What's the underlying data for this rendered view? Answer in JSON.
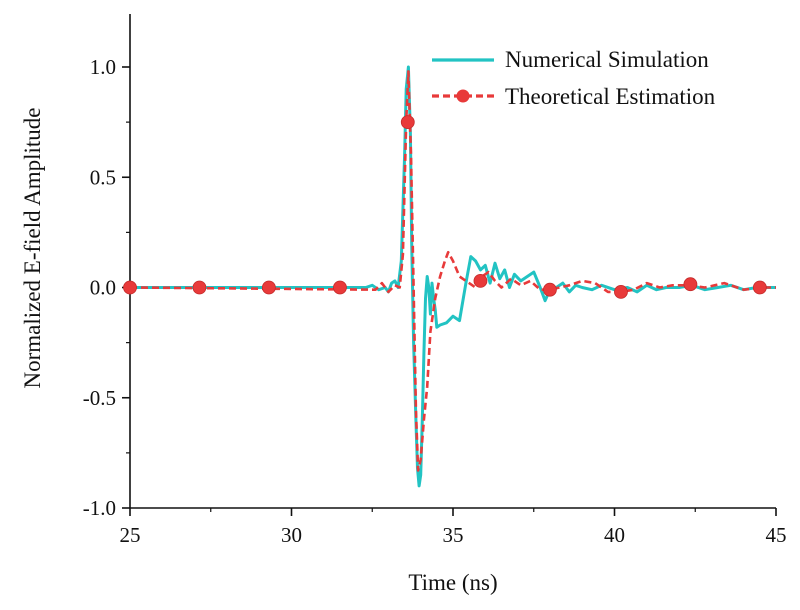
{
  "chart_data": {
    "type": "line",
    "title": "",
    "xlabel": "Time (ns)",
    "ylabel": "Normalized E-field Amplitude",
    "xlim": [
      25,
      45
    ],
    "ylim": [
      -1.0,
      1.25
    ],
    "xticks": [
      25,
      30,
      35,
      40,
      45
    ],
    "xtick_labels": [
      "25",
      "30",
      "35",
      "40",
      "45"
    ],
    "yticks": [
      -1.0,
      -0.5,
      0.0,
      0.5,
      1.0
    ],
    "ytick_labels": [
      "-1.0",
      "-0.5",
      "0.0",
      "0.5",
      "1.0"
    ],
    "grid": false,
    "legend": "top-right",
    "colors": {
      "simulation": "#22c3c3",
      "theory": "#e83a3a"
    },
    "series": [
      {
        "name": "Numerical Simulation",
        "style": "solid",
        "x": [
          25,
          32.3,
          32.5,
          32.7,
          32.9,
          33.0,
          33.1,
          33.2,
          33.3,
          33.4,
          33.5,
          33.55,
          33.62,
          33.68,
          33.72,
          33.78,
          33.85,
          33.9,
          33.95,
          34.0,
          34.05,
          34.1,
          34.15,
          34.2,
          34.25,
          34.3,
          34.35,
          34.4,
          34.45,
          34.5,
          34.6,
          34.8,
          35.0,
          35.2,
          35.4,
          35.55,
          35.7,
          35.85,
          36.0,
          36.15,
          36.3,
          36.45,
          36.6,
          36.75,
          36.9,
          37.1,
          37.3,
          37.5,
          37.7,
          37.85,
          38.0,
          38.2,
          38.4,
          38.6,
          38.8,
          39.0,
          39.3,
          39.6,
          40.0,
          40.4,
          40.7,
          41.0,
          41.3,
          41.6,
          42.0,
          42.4,
          42.8,
          43.2,
          43.6,
          44.0,
          44.4,
          44.8,
          45
        ],
        "y": [
          0.0,
          0.0,
          0.01,
          -0.01,
          0.0,
          -0.02,
          0.02,
          0.03,
          0.0,
          0.12,
          0.6,
          0.9,
          1.0,
          0.7,
          0.2,
          -0.25,
          -0.6,
          -0.82,
          -0.9,
          -0.85,
          -0.6,
          -0.3,
          -0.05,
          0.05,
          0.0,
          -0.12,
          0.02,
          -0.05,
          -0.1,
          -0.18,
          -0.17,
          -0.16,
          -0.13,
          -0.15,
          0.02,
          0.14,
          0.12,
          0.08,
          0.1,
          0.02,
          0.11,
          0.04,
          0.08,
          0.0,
          0.06,
          0.03,
          0.05,
          0.07,
          0.0,
          -0.06,
          -0.01,
          0.0,
          0.02,
          -0.02,
          0.01,
          0.0,
          -0.01,
          0.01,
          -0.01,
          0.0,
          -0.02,
          0.01,
          -0.01,
          0.0,
          0.0,
          0.01,
          -0.01,
          0.0,
          0.01,
          -0.01,
          0.0,
          0.0,
          0.0
        ]
      },
      {
        "name": "Theoretical Estimation",
        "style": "dashed",
        "x": [
          25,
          32.6,
          32.8,
          33.0,
          33.2,
          33.35,
          33.45,
          33.55,
          33.62,
          33.7,
          33.78,
          33.85,
          33.92,
          34.0,
          34.1,
          34.2,
          34.3,
          34.45,
          34.6,
          34.75,
          34.85,
          35.0,
          35.2,
          35.4,
          35.7,
          35.9,
          36.1,
          36.3,
          36.5,
          36.8,
          37.1,
          37.4,
          37.7,
          38.0,
          38.3,
          38.6,
          39.0,
          39.4,
          39.8,
          40.2,
          40.6,
          41.0,
          41.4,
          41.8,
          42.3,
          42.8,
          43.4,
          44.0,
          44.6,
          45
        ],
        "y": [
          0.0,
          -0.01,
          0.02,
          -0.02,
          0.01,
          0.0,
          0.15,
          0.75,
          0.98,
          0.6,
          0.0,
          -0.55,
          -0.83,
          -0.78,
          -0.6,
          -0.45,
          -0.2,
          -0.05,
          0.05,
          0.12,
          0.16,
          0.12,
          0.05,
          0.03,
          0.0,
          0.05,
          0.07,
          0.03,
          0.0,
          0.04,
          0.01,
          0.03,
          -0.01,
          -0.01,
          0.0,
          0.01,
          0.03,
          0.02,
          -0.02,
          -0.02,
          -0.01,
          0.02,
          0.0,
          0.01,
          0.01,
          0.0,
          0.02,
          -0.01,
          0.0,
          0.0
        ],
        "markers": {
          "x": [
            25,
            27.15,
            29.3,
            31.5,
            33.6,
            35.85,
            38.0,
            40.2,
            42.35,
            44.5
          ],
          "y": [
            0.0,
            0.0,
            0.0,
            0.0,
            0.75,
            0.03,
            -0.01,
            -0.02,
            0.015,
            0.0
          ]
        }
      }
    ]
  }
}
